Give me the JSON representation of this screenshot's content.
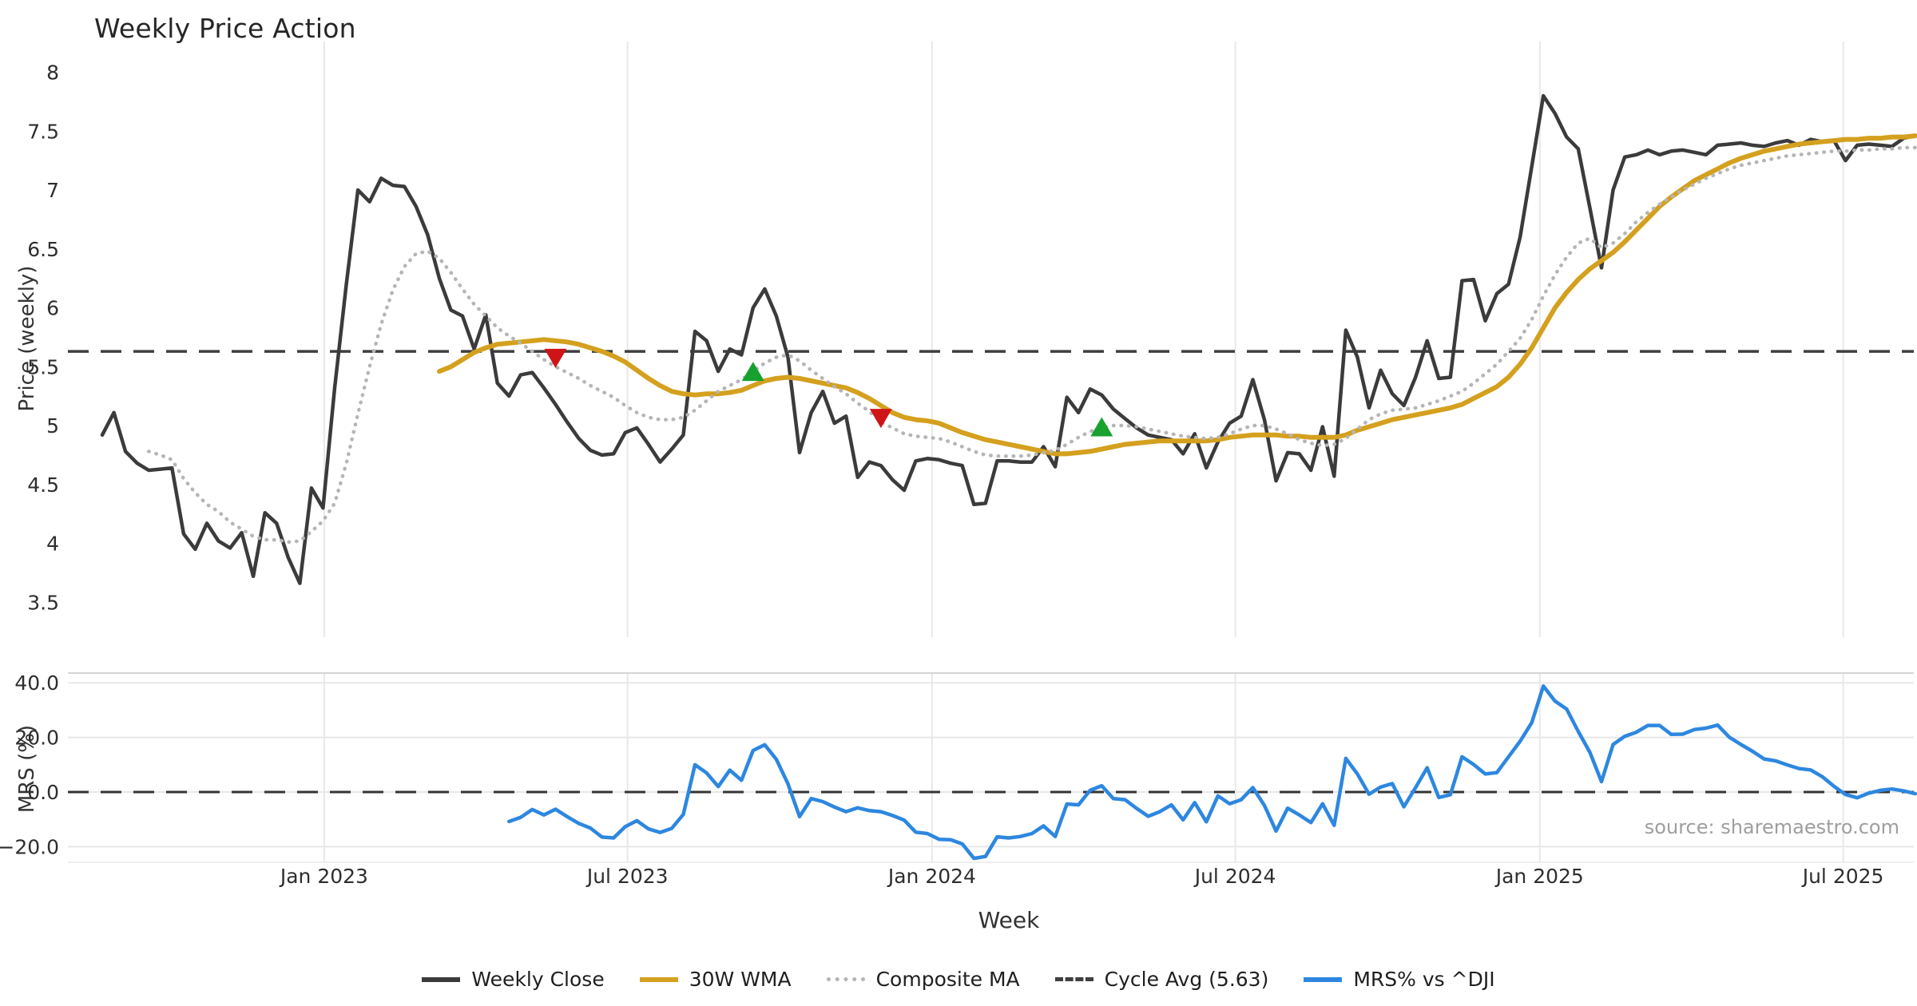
{
  "title": "Weekly Price Action",
  "source": "source: sharemaestro.com",
  "xlabel": "Week",
  "colors": {
    "close": "#3b3b3b",
    "wma": "#d4a01e",
    "composite": "#b5b5b5",
    "cycle": "#3f3f3f",
    "mrs": "#2d87e0",
    "buy": "#17a12e",
    "sell": "#cf1418",
    "grid": "#e8e8e8",
    "panel_border": "#d5d5d5",
    "tick_text": "#2e2e2e"
  },
  "legend": {
    "items": [
      {
        "label": "Weekly Close",
        "swatch": "solid-dark-line"
      },
      {
        "label": "30W WMA",
        "swatch": "solid-gold-line"
      },
      {
        "label": "Composite MA",
        "swatch": "dotted-gray-line"
      },
      {
        "label": "Cycle Avg (5.63)",
        "swatch": "dashed-dark-line"
      },
      {
        "label": "MRS% vs ^DJI",
        "swatch": "solid-blue-line"
      }
    ]
  },
  "axes": {
    "top_ylabel": "Price (weekly)",
    "bottom_ylabel": "MRS (%)",
    "top_yticks": [
      {
        "label": "8",
        "value": 8
      },
      {
        "label": "7.5",
        "value": 7.5
      },
      {
        "label": "7",
        "value": 7
      },
      {
        "label": "6.5",
        "value": 6.5
      },
      {
        "label": "6",
        "value": 6
      },
      {
        "label": "5.5",
        "value": 5.5
      },
      {
        "label": "5",
        "value": 5
      },
      {
        "label": "4.5",
        "value": 4.5
      },
      {
        "label": "4",
        "value": 4
      },
      {
        "label": "3.5",
        "value": 3.5
      }
    ],
    "bottom_yticks": [
      {
        "label": "40.0",
        "value": 40
      },
      {
        "label": "20.0",
        "value": 20
      },
      {
        "label": "0.0",
        "value": 0
      },
      {
        "label": "−20.0",
        "value": -20
      }
    ],
    "xticks": [
      {
        "label": "Jan 2023",
        "week": 19.1
      },
      {
        "label": "Jul 2023",
        "week": 45.2
      },
      {
        "label": "Jan 2024",
        "week": 71.4
      },
      {
        "label": "Jul 2024",
        "week": 97.5
      },
      {
        "label": "Jan 2025",
        "week": 123.7
      },
      {
        "label": "Jul 2025",
        "week": 149.8
      }
    ]
  },
  "chart_data": {
    "type": "line",
    "title": "Weekly Price Action",
    "xlabel": "Week",
    "x_start_date": "2022-08-22",
    "x_step_days": 7,
    "n_weeks": 157,
    "top_panel": {
      "ylabel": "Price (weekly)",
      "ylim": [
        3.4,
        8.1
      ],
      "cycle_avg": 5.63
    },
    "bottom_panel": {
      "ylabel": "MRS (%)",
      "ylim": [
        -28,
        44
      ],
      "zero_line": 0
    },
    "series": [
      {
        "name": "Weekly Close",
        "panel": "top",
        "values": [
          4.92,
          5.11,
          4.78,
          4.68,
          4.62,
          4.63,
          4.64,
          4.08,
          3.95,
          4.17,
          4.02,
          3.96,
          4.09,
          3.72,
          4.26,
          4.17,
          3.88,
          3.66,
          4.47,
          4.3,
          5.32,
          6.2,
          7.0,
          6.9,
          7.1,
          7.04,
          7.03,
          6.86,
          6.62,
          6.25,
          5.98,
          5.93,
          5.65,
          5.94,
          5.36,
          5.25,
          5.43,
          5.45,
          5.32,
          5.18,
          5.03,
          4.89,
          4.79,
          4.75,
          4.76,
          4.94,
          4.98,
          4.84,
          4.69,
          4.8,
          4.92,
          5.8,
          5.72,
          5.46,
          5.65,
          5.6,
          6.0,
          6.16,
          5.93,
          5.58,
          4.77,
          5.11,
          5.29,
          5.02,
          5.08,
          4.56,
          4.69,
          4.66,
          4.54,
          4.45,
          4.7,
          4.72,
          4.71,
          4.68,
          4.66,
          4.33,
          4.34,
          4.7,
          4.7,
          4.69,
          4.69,
          4.82,
          4.65,
          5.24,
          5.11,
          5.31,
          5.26,
          5.14,
          5.06,
          4.98,
          4.92,
          4.9,
          4.88,
          4.76,
          4.93,
          4.64,
          4.86,
          5.02,
          5.08,
          5.39,
          5.05,
          4.53,
          4.77,
          4.76,
          4.62,
          4.99,
          4.57,
          5.81,
          5.58,
          5.15,
          5.47,
          5.27,
          5.17,
          5.41,
          5.72,
          5.4,
          5.41,
          6.23,
          6.24,
          5.89,
          6.12,
          6.2,
          6.6,
          7.2,
          7.8,
          7.65,
          7.45,
          7.35,
          6.85,
          6.34,
          7.0,
          7.28,
          7.3,
          7.34,
          7.3,
          7.33,
          7.34,
          7.32,
          7.3,
          7.38,
          7.39,
          7.4,
          7.38,
          7.37,
          7.4,
          7.42,
          7.38,
          7.43,
          7.41,
          7.42,
          7.25,
          7.38,
          7.39,
          7.38,
          7.37,
          7.44,
          7.46
        ]
      },
      {
        "name": "30W WMA",
        "panel": "top",
        "values": [
          null,
          null,
          null,
          null,
          null,
          null,
          null,
          null,
          null,
          null,
          null,
          null,
          null,
          null,
          null,
          null,
          null,
          null,
          null,
          null,
          null,
          null,
          null,
          null,
          null,
          null,
          null,
          null,
          null,
          5.46,
          5.5,
          5.56,
          5.62,
          5.66,
          5.69,
          5.7,
          5.71,
          5.72,
          5.73,
          5.72,
          5.71,
          5.69,
          5.66,
          5.63,
          5.59,
          5.54,
          5.47,
          5.4,
          5.34,
          5.29,
          5.27,
          5.26,
          5.27,
          5.27,
          5.28,
          5.3,
          5.34,
          5.38,
          5.4,
          5.41,
          5.4,
          5.38,
          5.36,
          5.34,
          5.32,
          5.28,
          5.23,
          5.17,
          5.11,
          5.07,
          5.05,
          5.04,
          5.02,
          4.98,
          4.94,
          4.91,
          4.88,
          4.86,
          4.84,
          4.82,
          4.8,
          4.78,
          4.76,
          4.76,
          4.77,
          4.78,
          4.8,
          4.82,
          4.84,
          4.85,
          4.86,
          4.87,
          4.87,
          4.87,
          4.87,
          4.87,
          4.88,
          4.9,
          4.91,
          4.92,
          4.92,
          4.92,
          4.91,
          4.91,
          4.9,
          4.9,
          4.9,
          4.92,
          4.96,
          4.99,
          5.02,
          5.05,
          5.07,
          5.09,
          5.11,
          5.13,
          5.15,
          5.18,
          5.23,
          5.28,
          5.33,
          5.41,
          5.52,
          5.66,
          5.83,
          6.0,
          6.13,
          6.24,
          6.33,
          6.4,
          6.47,
          6.56,
          6.66,
          6.76,
          6.86,
          6.94,
          7.01,
          7.08,
          7.13,
          7.18,
          7.23,
          7.27,
          7.3,
          7.33,
          7.35,
          7.37,
          7.39,
          7.4,
          7.41,
          7.42,
          7.43,
          7.43,
          7.44,
          7.44,
          7.45,
          7.45,
          7.46
        ]
      },
      {
        "name": "Composite MA",
        "panel": "top",
        "values": [
          null,
          null,
          null,
          null,
          4.78,
          4.75,
          4.71,
          4.55,
          4.43,
          4.33,
          4.27,
          4.18,
          4.12,
          4.06,
          4.03,
          4.03,
          4.01,
          4.02,
          4.1,
          4.19,
          4.34,
          4.68,
          5.1,
          5.5,
          5.86,
          6.15,
          6.35,
          6.46,
          6.48,
          6.42,
          6.3,
          6.16,
          6.03,
          5.93,
          5.83,
          5.76,
          5.7,
          5.63,
          5.56,
          5.5,
          5.45,
          5.4,
          5.34,
          5.29,
          5.24,
          5.17,
          5.11,
          5.07,
          5.05,
          5.05,
          5.07,
          5.13,
          5.21,
          5.29,
          5.34,
          5.39,
          5.46,
          5.53,
          5.58,
          5.6,
          5.55,
          5.47,
          5.4,
          5.33,
          5.27,
          5.19,
          5.12,
          5.03,
          4.98,
          4.93,
          4.91,
          4.9,
          4.89,
          4.86,
          4.82,
          4.78,
          4.75,
          4.74,
          4.74,
          4.74,
          4.75,
          4.77,
          4.79,
          4.84,
          4.9,
          4.95,
          4.98,
          5.0,
          5.0,
          4.99,
          4.97,
          4.95,
          4.93,
          4.91,
          4.9,
          4.89,
          4.9,
          4.93,
          4.97,
          5.0,
          5.0,
          4.97,
          4.93,
          4.88,
          4.85,
          4.83,
          4.84,
          4.89,
          4.97,
          5.05,
          5.1,
          5.13,
          5.14,
          5.15,
          5.18,
          5.21,
          5.25,
          5.29,
          5.36,
          5.44,
          5.52,
          5.63,
          5.74,
          5.9,
          6.1,
          6.28,
          6.43,
          6.55,
          6.59,
          6.51,
          6.55,
          6.63,
          6.73,
          6.81,
          6.88,
          6.94,
          7.0,
          7.05,
          7.1,
          7.14,
          7.18,
          7.21,
          7.23,
          7.25,
          7.27,
          7.29,
          7.3,
          7.31,
          7.32,
          7.33,
          7.33,
          7.34,
          7.34,
          7.35,
          7.35,
          7.36,
          7.36
        ]
      },
      {
        "name": "MRS% vs ^DJI",
        "panel": "bottom",
        "values": [
          null,
          null,
          null,
          null,
          null,
          null,
          null,
          null,
          null,
          null,
          null,
          null,
          null,
          null,
          null,
          null,
          null,
          null,
          null,
          null,
          null,
          null,
          null,
          null,
          null,
          null,
          null,
          null,
          null,
          null,
          null,
          null,
          null,
          null,
          null,
          -10.8,
          -9.3,
          -6.4,
          -8.4,
          -6.3,
          -9.0,
          -11.5,
          -13.2,
          -16.5,
          -16.8,
          -12.7,
          -10.5,
          -13.5,
          -14.8,
          -13.3,
          -8.2,
          10.0,
          7.0,
          2.0,
          8.0,
          4.3,
          15.2,
          17.3,
          12.0,
          3.0,
          -9.0,
          -2.4,
          -3.5,
          -5.5,
          -7.2,
          -5.8,
          -6.8,
          -7.2,
          -8.6,
          -10.3,
          -14.7,
          -15.2,
          -17.3,
          -17.5,
          -19.0,
          -24.3,
          -23.6,
          -16.4,
          -16.8,
          -16.3,
          -15.2,
          -12.4,
          -16.3,
          -4.4,
          -4.7,
          0.6,
          2.3,
          -2.4,
          -2.8,
          -6.0,
          -8.9,
          -7.2,
          -4.7,
          -10.2,
          -3.9,
          -10.9,
          -1.4,
          -4.3,
          -2.8,
          1.6,
          -4.9,
          -14.3,
          -5.9,
          -8.4,
          -11.2,
          -4.3,
          -12.2,
          12.3,
          6.6,
          -0.8,
          1.8,
          3.1,
          -5.4,
          1.6,
          8.9,
          -2.0,
          -1.0,
          12.9,
          10.1,
          6.6,
          7.1,
          12.9,
          18.6,
          25.4,
          38.8,
          33.3,
          30.4,
          22.2,
          14.6,
          3.8,
          17.4,
          20.4,
          21.9,
          24.4,
          24.4,
          21.1,
          21.2,
          22.9,
          23.4,
          24.5,
          20.1,
          17.4,
          14.9,
          12.1,
          11.4,
          9.9,
          8.6,
          8.1,
          5.6,
          2.1,
          -0.9,
          -2.1,
          -0.4,
          0.6,
          1.1,
          0.4,
          -0.6
        ]
      }
    ],
    "markers": [
      {
        "week": 39,
        "price": 5.57,
        "type": "sell"
      },
      {
        "week": 56,
        "price": 5.46,
        "type": "buy"
      },
      {
        "week": 67,
        "price": 5.06,
        "type": "sell"
      },
      {
        "week": 86,
        "price": 4.99,
        "type": "buy"
      }
    ]
  }
}
